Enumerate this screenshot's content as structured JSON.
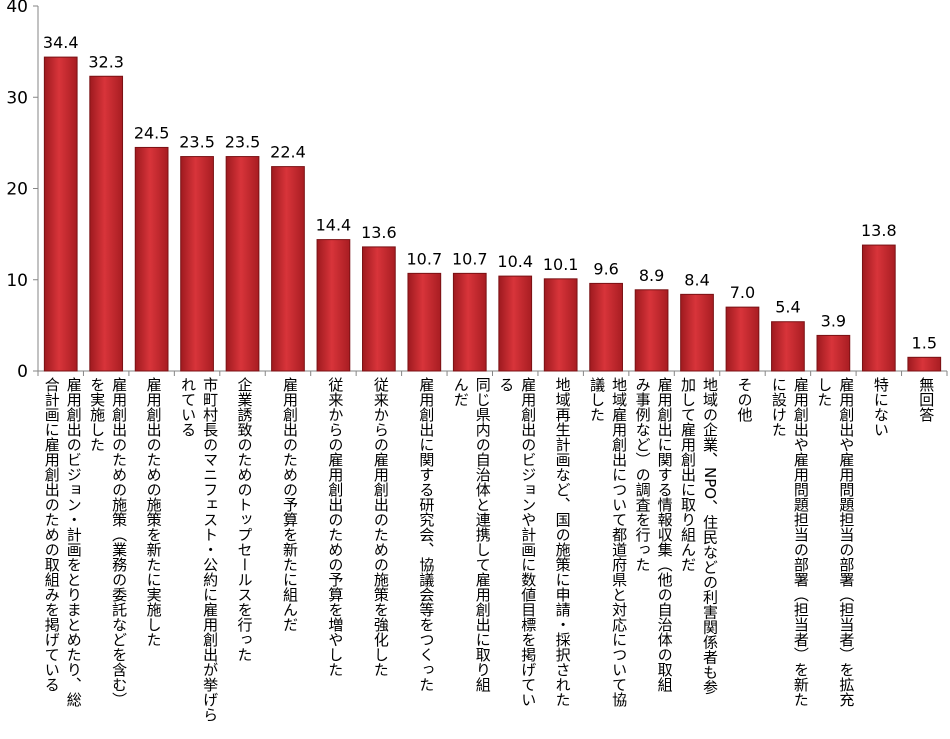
{
  "chart_data": {
    "type": "bar",
    "ylim": [
      0,
      40
    ],
    "yticks": [
      0,
      10,
      20,
      30,
      40
    ],
    "grid": false,
    "bar_color": "#c0272d",
    "bar_edge_color": "#7a1114",
    "categories": [
      "雇用創出のビジョン・計画をとりまとめたり、総\n合計画に雇用創出のための取組みを掲げている",
      "雇用創出のための施策（業務の委託などを含む）\nを実施した",
      "雇用創出のための施策を新たに実施した",
      "市町村長のマニフェスト・公約に雇用創出が挙げら\nれている",
      "企業誘致のためのトップセールスを行った",
      "雇用創出のための予算を新たに組んだ",
      "従来からの雇用創出のための予算を増やした",
      "従来からの雇用創出のための施策を強化した",
      "雇用創出に関する研究会、協議会等をつくった",
      "同じ県内の自治体と連携して雇用創出に取り組\nんだ",
      "雇用創出のビジョンや計画に数値目標を掲げてい\nる",
      "地域再生計画など、国の施策に申請・採択された",
      "地域雇用創出について都道府県と対応について協\n議した",
      "雇用創出に関する情報収集（他の自治体の取組\nみ事例など）の調査を行った",
      "地域の企業、NPO、住民などの利害関係者も参\n加して雇用創出に取り組んだ",
      "その他",
      "雇用創出や雇用問題担当の部署（担当者）を新た\nに設けた",
      "雇用創出や雇用問題担当の部署（担当者）を拡充\nした",
      "特にない",
      "無回答"
    ],
    "values": [
      34.4,
      32.3,
      24.5,
      23.5,
      23.5,
      22.4,
      14.4,
      13.6,
      10.7,
      10.7,
      10.4,
      10.1,
      9.6,
      8.9,
      8.4,
      7.0,
      5.4,
      3.9,
      13.8,
      1.5
    ],
    "data_labels": [
      "34.4",
      "32.3",
      "24.5",
      "23.5",
      "23.5",
      "22.4",
      "14.4",
      "13.6",
      "10.7",
      "10.7",
      "10.4",
      "10.1",
      "9.6",
      "8.9",
      "8.4",
      "7.0",
      "5.4",
      "3.9",
      "13.8",
      "1.5"
    ]
  }
}
